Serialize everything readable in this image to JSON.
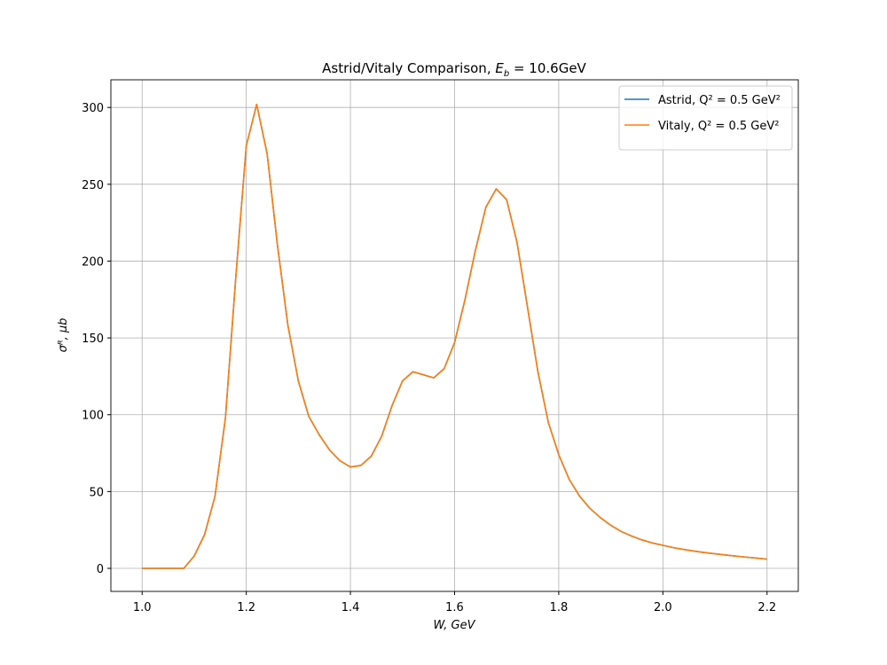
{
  "chart_data": {
    "type": "line",
    "title": {
      "text": "Astrid/Vitaly Comparison, ",
      "symbol": "E",
      "subscript": "b",
      "equation": " = 10.6GeV"
    },
    "x_label": "W, GeV",
    "y_label": "σᴿ, μb",
    "x": [
      1.0,
      1.02,
      1.04,
      1.06,
      1.08,
      1.1,
      1.12,
      1.14,
      1.16,
      1.18,
      1.2,
      1.22,
      1.24,
      1.26,
      1.28,
      1.3,
      1.32,
      1.34,
      1.36,
      1.38,
      1.4,
      1.42,
      1.44,
      1.46,
      1.48,
      1.5,
      1.52,
      1.54,
      1.56,
      1.58,
      1.6,
      1.62,
      1.64,
      1.66,
      1.68,
      1.7,
      1.72,
      1.74,
      1.76,
      1.78,
      1.8,
      1.82,
      1.84,
      1.86,
      1.88,
      1.9,
      1.92,
      1.94,
      1.96,
      1.98,
      2.0,
      2.02,
      2.04,
      2.06,
      2.08,
      2.1,
      2.12,
      2.14,
      2.16,
      2.18,
      2.2
    ],
    "series": [
      {
        "name": "Astrid, Q² = 0.5 GeV²",
        "color": "#1f77b4",
        "values": [
          0,
          0,
          0,
          0,
          0,
          8,
          22,
          47,
          98,
          190,
          275,
          302,
          270,
          210,
          158,
          122,
          99,
          87,
          77,
          70,
          66,
          67,
          73,
          86,
          106,
          122,
          128,
          126,
          124,
          130,
          147,
          175,
          207,
          235,
          247,
          240,
          212,
          170,
          128,
          95,
          74,
          58,
          47,
          39,
          33,
          28,
          24,
          21,
          18.5,
          16.5,
          15,
          13.5,
          12.3,
          11.2,
          10.3,
          9.5,
          8.7,
          8,
          7.3,
          6.7,
          6
        ]
      },
      {
        "name": "Vitaly, Q² = 0.5 GeV²",
        "color": "#ff7f0e",
        "values": [
          0,
          0,
          0,
          0,
          0,
          8,
          22,
          47,
          98,
          190,
          275,
          302,
          270,
          210,
          158,
          122,
          99,
          87,
          77,
          70,
          66,
          67,
          73,
          86,
          106,
          122,
          128,
          126,
          124,
          130,
          147,
          175,
          207,
          235,
          247,
          240,
          212,
          170,
          128,
          95,
          74,
          58,
          47,
          39,
          33,
          28,
          24,
          21,
          18.5,
          16.5,
          15,
          13.5,
          12.3,
          11.2,
          10.3,
          9.5,
          8.7,
          8,
          7.3,
          6.7,
          6
        ]
      }
    ],
    "xlim": [
      0.94,
      2.26
    ],
    "ylim": [
      -15,
      318
    ],
    "xticks": [
      {
        "value": 1,
        "label": "1.0"
      },
      1.2,
      1.4,
      1.6,
      1.8,
      {
        "value": 2,
        "label": "2.0"
      },
      2.2
    ],
    "yticks": [
      0,
      50,
      100,
      150,
      200,
      250,
      300
    ],
    "grid": true,
    "legend": "upper right"
  }
}
